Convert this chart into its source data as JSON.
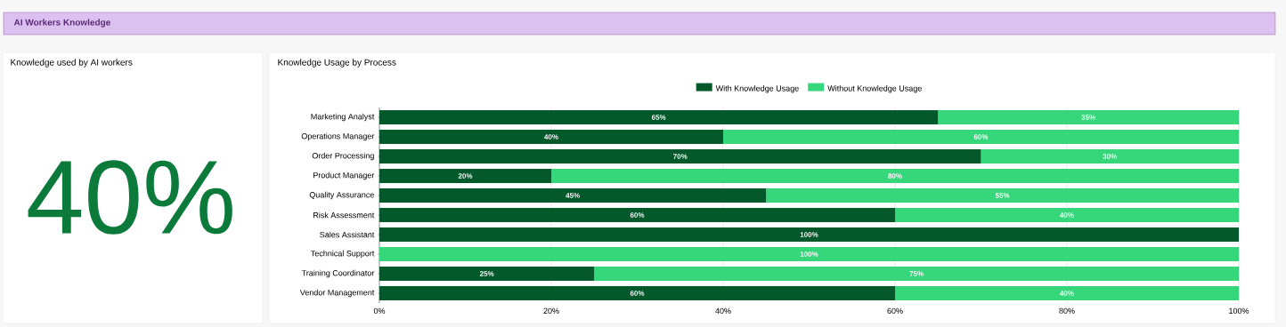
{
  "chart_data": [
    {
      "type": "other",
      "title": "AI Workers Knowledge"
    },
    {
      "type": "other",
      "title": "Knowledge used by AI workers",
      "annotations": [
        "40%"
      ]
    },
    {
      "type": "bar",
      "orientation": "horizontal",
      "stacked": true,
      "title": "Knowledge Usage by Process",
      "categories": [
        "Marketing Analyst",
        "Operations Manager",
        "Order Processing",
        "Product Manager",
        "Quality Assurance",
        "Risk Assessment",
        "Sales Assistant",
        "Technical Support",
        "Training Coordinator",
        "Vendor Management"
      ],
      "series": [
        {
          "name": "With Knowledge Usage",
          "color": "#04592b",
          "values": [
            65,
            40,
            70,
            20,
            45,
            60,
            100,
            0,
            25,
            60
          ],
          "value_labels": [
            "65%",
            "40%",
            "70%",
            "20%",
            "45%",
            "60%",
            "100%",
            null,
            "25%",
            "60%"
          ]
        },
        {
          "name": "Without Knowledge Usage",
          "color": "#36d67b",
          "values": [
            35,
            60,
            30,
            80,
            55,
            40,
            0,
            100,
            75,
            40
          ],
          "value_labels": [
            "35%",
            "60%",
            "30%",
            "80%",
            "55%",
            "40%",
            null,
            "100%",
            "75%",
            "40%"
          ]
        }
      ],
      "xlim": [
        0,
        100
      ],
      "xticks": [
        {
          "value": 0,
          "label": "0%"
        },
        {
          "value": 20,
          "label": "20%"
        },
        {
          "value": 40,
          "label": "40%"
        },
        {
          "value": 60,
          "label": "60%"
        },
        {
          "value": 80,
          "label": "80%"
        },
        {
          "value": 100,
          "label": "100%"
        }
      ],
      "grid": "x",
      "legend": "top"
    }
  ]
}
